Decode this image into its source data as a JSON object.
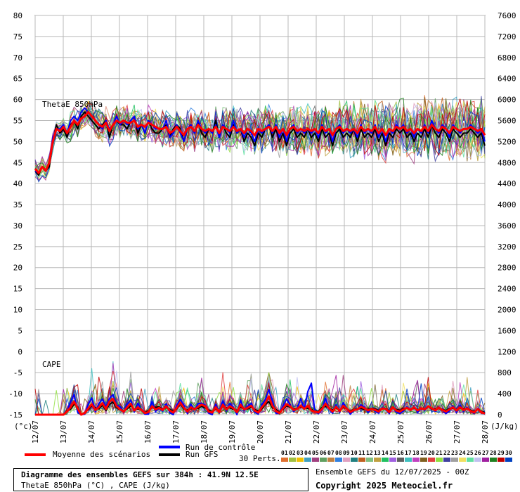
{
  "chart_data": {
    "type": "line",
    "title": "Diagramme des ensembles GEFS sur 384h : 41.9N 12.5E",
    "subtitle": "ThetaE 850hPa (°C) , CAPE (J/kg)",
    "left_axis": {
      "label": "(°c)",
      "ticks": [
        80,
        75,
        70,
        65,
        60,
        55,
        50,
        45,
        40,
        35,
        30,
        25,
        20,
        15,
        10,
        5,
        0,
        -5,
        -10,
        -15
      ],
      "ylim": [
        -15,
        80
      ]
    },
    "right_axis": {
      "label": "(J/kg)",
      "ticks": [
        7600,
        7200,
        6800,
        6400,
        6000,
        5600,
        5200,
        4800,
        4400,
        4000,
        3600,
        3200,
        2800,
        2400,
        2000,
        1600,
        1200,
        800,
        400,
        0
      ]
    },
    "x_labels": [
      "12/07",
      "13/07",
      "14/07",
      "15/07",
      "16/07",
      "17/07",
      "18/07",
      "19/07",
      "20/07",
      "21/07",
      "22/07",
      "23/07",
      "24/07",
      "25/07",
      "26/07",
      "27/07",
      "28/07"
    ],
    "panel_labels": {
      "thetae": "ThetaE 850hPa",
      "cape": "CAPE"
    },
    "thetae_mean": [
      43.5,
      42.5,
      44,
      43,
      45,
      50,
      53,
      52.5,
      53.5,
      52,
      53.5,
      55,
      54,
      55.5,
      56,
      57,
      56,
      55,
      54,
      53.5,
      54.5,
      52.5,
      54,
      55,
      54.5,
      55,
      54.5,
      54.5,
      55,
      53.5,
      54,
      53.5,
      54.5,
      54,
      53.5,
      53,
      53,
      53.5,
      52,
      52.5,
      53.5,
      52.5,
      51.5,
      53,
      53.5,
      52.5,
      54,
      53,
      52.5,
      53,
      52.5,
      53.5,
      52,
      53.5,
      53,
      52.5,
      53.5,
      52.5,
      53,
      52,
      53,
      52.5,
      51.5,
      53,
      52.5,
      53,
      53.5,
      52.5,
      53.5,
      52,
      53,
      51.5,
      53,
      53.5,
      52.5,
      53,
      52.5,
      53,
      52.5,
      53,
      52,
      53.5,
      52.5,
      53,
      51.5,
      53,
      53.5,
      52.5,
      53,
      52.5,
      53,
      52,
      53.5,
      52.5,
      53,
      52.5,
      53.5,
      52,
      53,
      51.5,
      53,
      52.5,
      53.5,
      53,
      53.5,
      52.5,
      53,
      52,
      53,
      52.5,
      53.5,
      52.5,
      54,
      53,
      52.5,
      53.5,
      53,
      52,
      53.5,
      53,
      52.5,
      53,
      53,
      53.5,
      53,
      52.5,
      53,
      51.5
    ],
    "thetae_control": [
      43,
      42.5,
      44,
      43,
      45,
      51,
      53,
      53,
      54,
      52,
      55,
      56,
      55,
      57,
      58,
      57,
      56,
      55,
      54,
      53,
      55,
      53,
      54,
      56,
      54,
      55,
      54,
      55,
      56,
      53,
      54,
      52,
      55,
      54,
      53,
      53,
      53,
      55,
      51,
      52,
      54,
      52,
      50,
      53,
      54,
      52,
      55,
      53,
      52,
      53,
      52,
      54,
      51,
      54,
      53,
      52,
      55,
      52,
      53,
      51,
      53,
      52,
      50,
      53,
      52,
      53,
      54,
      52,
      54,
      51,
      53,
      50,
      53,
      54,
      52,
      53,
      52,
      53,
      52,
      53,
      51,
      54,
      52,
      53,
      50,
      53,
      54,
      52,
      53,
      52,
      53,
      51,
      54,
      52,
      53,
      52,
      54,
      51,
      53,
      50,
      53,
      52,
      54,
      53,
      54,
      52,
      53,
      51,
      53,
      52,
      54,
      52,
      55,
      53,
      52,
      54,
      53,
      51,
      54,
      53,
      52,
      53,
      53,
      54,
      53,
      52,
      53,
      50
    ],
    "thetae_gfs": [
      43,
      42,
      44,
      43,
      44,
      50,
      54,
      52,
      53,
      51,
      54,
      55,
      53,
      56,
      57,
      56,
      55,
      54,
      53,
      54,
      55,
      51,
      54,
      55,
      54,
      54,
      53,
      55,
      56,
      52,
      54,
      52,
      55,
      53,
      52,
      52,
      53,
      54,
      51,
      53,
      54,
      53,
      50,
      53,
      54,
      52,
      55,
      52,
      51,
      53,
      52,
      55,
      51,
      54,
      52,
      51,
      54,
      52,
      53,
      50,
      52,
      51,
      49,
      52,
      51,
      53,
      54,
      51,
      53,
      50,
      52,
      49,
      52,
      53,
      51,
      52,
      51,
      53,
      51,
      52,
      50,
      53,
      51,
      52,
      49,
      52,
      53,
      51,
      52,
      51,
      53,
      50,
      53,
      51,
      52,
      51,
      53,
      50,
      52,
      49,
      52,
      51,
      53,
      52,
      53,
      51,
      52,
      50,
      52,
      51,
      53,
      51,
      54,
      52,
      51,
      53,
      52,
      50,
      53,
      52,
      51,
      52,
      52,
      53,
      52,
      51,
      52,
      49
    ],
    "cape_mean": [
      0,
      0,
      0,
      0,
      0,
      0,
      0,
      0,
      0,
      60,
      140,
      250,
      120,
      0,
      30,
      120,
      200,
      90,
      140,
      220,
      110,
      250,
      300,
      160,
      100,
      60,
      140,
      210,
      80,
      140,
      90,
      30,
      50,
      160,
      100,
      130,
      90,
      160,
      80,
      40,
      130,
      230,
      130,
      60,
      140,
      100,
      150,
      190,
      160,
      60,
      40,
      140,
      50,
      190,
      100,
      160,
      120,
      50,
      190,
      100,
      130,
      170,
      80,
      40,
      140,
      220,
      350,
      170,
      70,
      30,
      120,
      200,
      160,
      90,
      110,
      170,
      110,
      170,
      80,
      60,
      40,
      110,
      210,
      120,
      60,
      150,
      70,
      170,
      110,
      50,
      90,
      100,
      150,
      120,
      80,
      110,
      90,
      60,
      120,
      110,
      50,
      140,
      80,
      60,
      100,
      130,
      90,
      140,
      80,
      120,
      100,
      160,
      120,
      80,
      130,
      90,
      60,
      100,
      140,
      80,
      140,
      90,
      120,
      70,
      40,
      110,
      50,
      20
    ],
    "cape_control": [
      0,
      0,
      0,
      0,
      0,
      0,
      0,
      0,
      0,
      50,
      250,
      380,
      50,
      0,
      10,
      200,
      320,
      60,
      210,
      300,
      150,
      310,
      380,
      190,
      150,
      50,
      200,
      280,
      50,
      220,
      80,
      10,
      10,
      250,
      60,
      120,
      70,
      210,
      40,
      0,
      180,
      290,
      180,
      20,
      200,
      90,
      210,
      220,
      180,
      30,
      0,
      200,
      30,
      260,
      70,
      210,
      140,
      0,
      280,
      80,
      160,
      220,
      50,
      10,
      190,
      290,
      480,
      250,
      30,
      20,
      170,
      300,
      190,
      60,
      120,
      310,
      100,
      440,
      600,
      70,
      20,
      90,
      310,
      110,
      30,
      190,
      40,
      230,
      110,
      10,
      80,
      100,
      190,
      140,
      40,
      110,
      70,
      30,
      140,
      100,
      20,
      150,
      50,
      20,
      70,
      150,
      90,
      160,
      40,
      130,
      80,
      150,
      130,
      60,
      140,
      80,
      20,
      70,
      170,
      40,
      180,
      70,
      140,
      60,
      20,
      120,
      60,
      10
    ],
    "cape_gfs": [
      0,
      0,
      0,
      0,
      0,
      0,
      0,
      0,
      0,
      80,
      100,
      200,
      150,
      0,
      40,
      100,
      170,
      130,
      110,
      180,
      80,
      200,
      240,
      130,
      90,
      70,
      110,
      170,
      100,
      110,
      100,
      40,
      70,
      130,
      140,
      150,
      110,
      130,
      110,
      60,
      110,
      200,
      110,
      90,
      110,
      120,
      120,
      160,
      130,
      90,
      60,
      110,
      70,
      160,
      130,
      130,
      100,
      80,
      150,
      110,
      110,
      140,
      100,
      70,
      110,
      190,
      250,
      130,
      100,
      50,
      100,
      170,
      140,
      110,
      120,
      140,
      130,
      120,
      100,
      70,
      60,
      140,
      160,
      130,
      90,
      120,
      90,
      140,
      110,
      70,
      100,
      110,
      120,
      100,
      100,
      120,
      110,
      80,
      110,
      120,
      70,
      130,
      100,
      80,
      120,
      120,
      100,
      120,
      100,
      110,
      110,
      150,
      110,
      100,
      120,
      100,
      80,
      120,
      120,
      100,
      120,
      110,
      110,
      90,
      60,
      100,
      70,
      40
    ]
  },
  "legend": {
    "mean_label": "Moyenne des scénarios",
    "control_label": "Run de contrôle",
    "gfs_label": "Run GFS",
    "perts_label": "30 Perts.",
    "pert_numbers": [
      "01",
      "02",
      "03",
      "04",
      "05",
      "06",
      "07",
      "08",
      "09",
      "10",
      "11",
      "12",
      "13",
      "14",
      "15",
      "16",
      "17",
      "18",
      "19",
      "20",
      "21",
      "22",
      "23",
      "24",
      "25",
      "26",
      "27",
      "28",
      "29",
      "30"
    ],
    "pert_colors": [
      "#e07030",
      "#a0c040",
      "#f0c000",
      "#40a0c0",
      "#a04080",
      "#60a060",
      "#c08040",
      "#3080e0",
      "#e0a0c0",
      "#208080",
      "#c06020",
      "#80c080",
      "#c0a040",
      "#20c060",
      "#a060e0",
      "#606060",
      "#40c0c0",
      "#c040c0",
      "#806020",
      "#e04040",
      "#90e040",
      "#4040a0",
      "#a0a0a0",
      "#f0e060",
      "#60e0a0",
      "#c0c0f0",
      "#a020a0",
      "#208020",
      "#c00000",
      "#0040c0"
    ],
    "colors": {
      "mean": "#ff0000",
      "control": "#0000ff",
      "gfs": "#000000"
    }
  },
  "info": {
    "title": "Diagramme des ensembles GEFS sur 384h : 41.9N 12.5E",
    "subtitle": "ThetaE 850hPa (°C) , CAPE (J/kg)",
    "run": "Ensemble GEFS du 12/07/2025 - 00Z",
    "copyright": "Copyright 2025 Meteociel.fr"
  }
}
